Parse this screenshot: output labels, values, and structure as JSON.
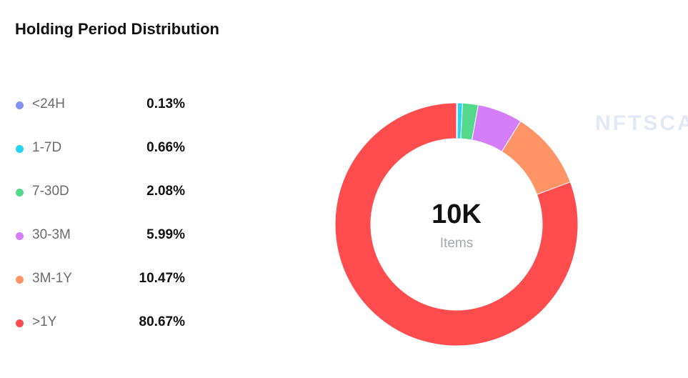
{
  "header": {
    "title": "Holding Period Distribution"
  },
  "watermark": "NFTSCA",
  "chart_data": {
    "type": "pie",
    "donut": true,
    "center_value": "10K",
    "center_unit": "Items",
    "categories": [
      "<24H",
      "1-7D",
      "7-30D",
      "30-3M",
      "3M-1Y",
      ">1Y"
    ],
    "values": [
      0.13,
      0.66,
      2.08,
      5.99,
      10.47,
      80.67
    ],
    "value_labels": [
      "0.13%",
      "0.66%",
      "2.08%",
      "5.99%",
      "10.47%",
      "80.67%"
    ],
    "colors": [
      "#8391f2",
      "#27d3f1",
      "#54d98c",
      "#d47ff9",
      "#ff9466",
      "#ff4d4f"
    ],
    "legend_position": "left"
  }
}
